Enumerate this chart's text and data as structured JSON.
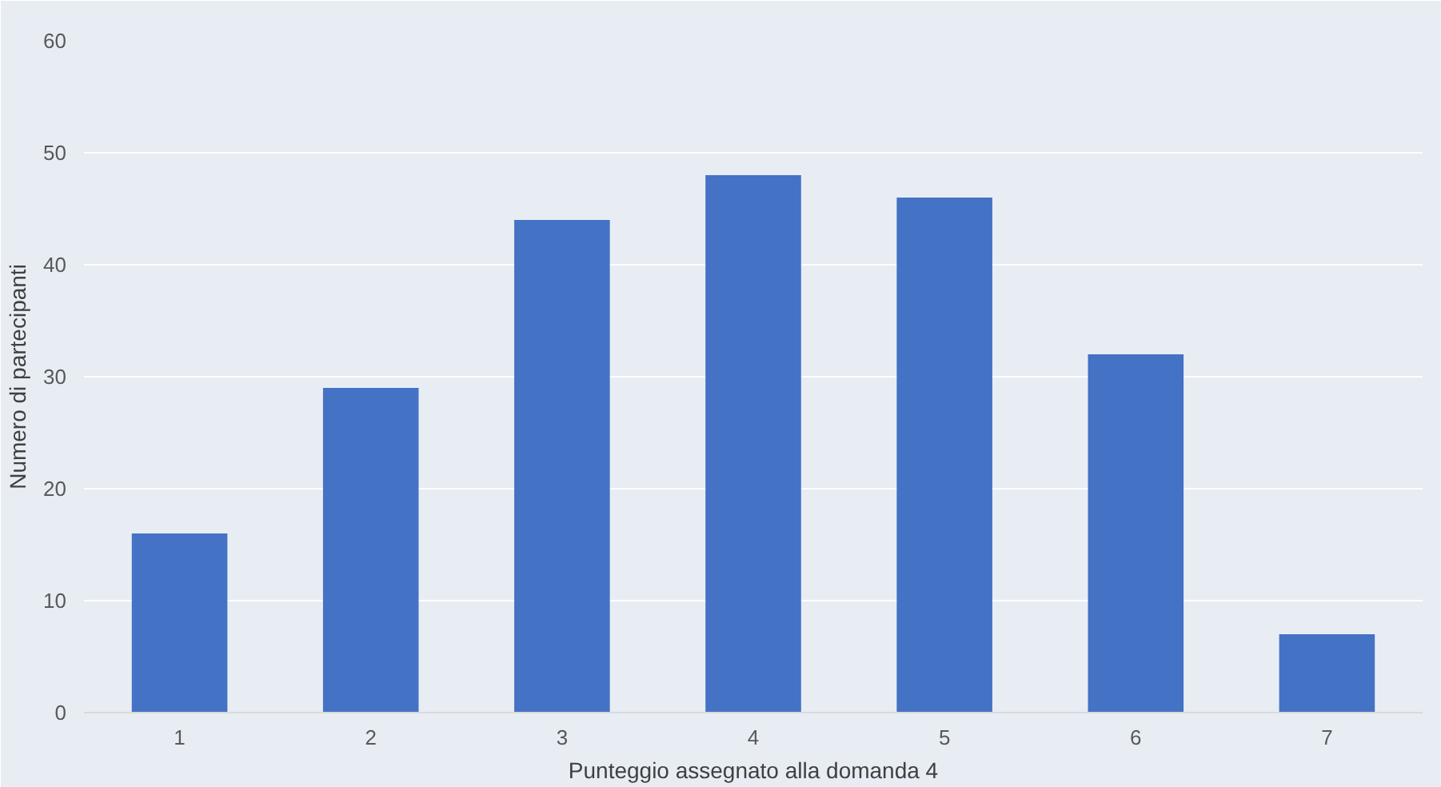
{
  "chart_data": {
    "type": "bar",
    "xlabel": "Punteggio assegnato alla domanda 4",
    "ylabel": "Numero di partecipanti",
    "categories": [
      "1",
      "2",
      "3",
      "4",
      "5",
      "6",
      "7"
    ],
    "values": [
      16,
      29,
      44,
      48,
      46,
      32,
      7
    ],
    "color": "#4472c4",
    "ylim": [
      0,
      60
    ],
    "yticks": [
      0,
      10,
      20,
      30,
      40,
      50,
      60
    ],
    "grid": "y"
  }
}
